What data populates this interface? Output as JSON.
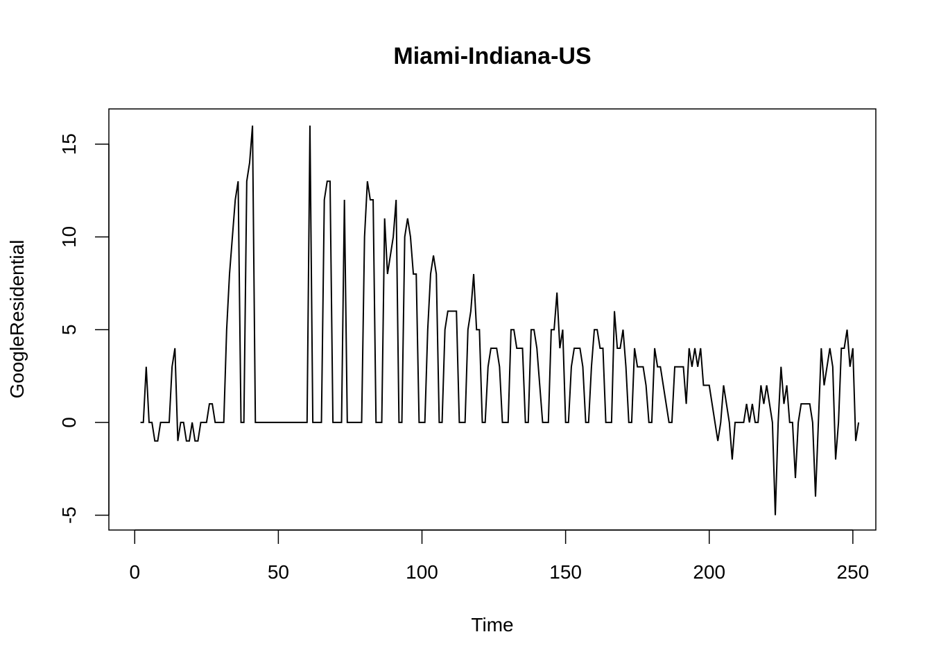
{
  "chart_data": {
    "type": "line",
    "title": "Miami-Indiana-US",
    "xlabel": "Time",
    "ylabel": "GoogleResidential",
    "xlim": [
      -9,
      258
    ],
    "ylim": [
      -5.8,
      16.9
    ],
    "x_ticks": [
      0,
      50,
      100,
      150,
      200,
      250
    ],
    "y_ticks": [
      -5,
      0,
      5,
      10,
      15
    ],
    "x_tick_labels": [
      "0",
      "50",
      "100",
      "150",
      "200",
      "250"
    ],
    "y_tick_labels": [
      "-5",
      "0",
      "5",
      "10",
      "15"
    ],
    "grid": false,
    "legend": "none",
    "line_color": "#000000",
    "series": [
      {
        "x_start": 2,
        "values": [
          0,
          0,
          3,
          0,
          0,
          -1,
          -1,
          0,
          0,
          0,
          0,
          3,
          4,
          -1,
          0,
          0,
          -1,
          -1,
          0,
          -1,
          -1,
          0,
          0,
          0,
          1,
          1,
          0,
          0,
          0,
          0,
          5,
          8,
          10,
          12,
          13,
          0,
          0,
          13,
          14,
          16,
          0,
          0,
          0,
          0,
          0,
          0,
          0,
          0,
          0,
          0,
          0,
          0,
          0,
          0,
          0,
          0,
          0,
          0,
          0,
          16,
          0,
          0,
          0,
          0,
          12,
          13,
          13,
          0,
          0,
          0,
          0,
          12,
          0,
          0,
          0,
          0,
          0,
          0,
          10,
          13,
          12,
          12,
          0,
          0,
          0,
          11,
          8,
          9,
          10,
          12,
          0,
          0,
          10,
          11,
          10,
          8,
          8,
          0,
          0,
          0,
          5,
          8,
          9,
          8,
          0,
          0,
          5,
          6,
          6,
          6,
          6,
          0,
          0,
          0,
          5,
          6,
          8,
          5,
          5,
          0,
          0,
          3,
          4,
          4,
          4,
          3,
          0,
          0,
          0,
          5,
          5,
          4,
          4,
          4,
          0,
          0,
          5,
          5,
          4,
          2,
          0,
          0,
          0,
          5,
          5,
          7,
          4,
          5,
          0,
          0,
          3,
          4,
          4,
          4,
          3,
          0,
          0,
          3,
          5,
          5,
          4,
          4,
          0,
          0,
          0,
          6,
          4,
          4,
          5,
          3,
          0,
          0,
          4,
          3,
          3,
          3,
          2,
          0,
          0,
          4,
          3,
          3,
          2,
          1,
          0,
          0,
          3,
          3,
          3,
          3,
          1,
          4,
          3,
          4,
          3,
          4,
          2,
          2,
          2,
          1,
          0,
          -1,
          0,
          2,
          1,
          0,
          -2,
          0,
          0,
          0,
          0,
          1,
          0,
          1,
          0,
          0,
          2,
          1,
          2,
          1,
          0,
          -5,
          0,
          3,
          1,
          2,
          0,
          0,
          -3,
          0,
          1,
          1,
          1,
          1,
          0,
          -4,
          0,
          4,
          2,
          3,
          4,
          3,
          -2,
          0,
          4,
          4,
          5,
          3,
          4,
          -1,
          0
        ]
      }
    ]
  }
}
